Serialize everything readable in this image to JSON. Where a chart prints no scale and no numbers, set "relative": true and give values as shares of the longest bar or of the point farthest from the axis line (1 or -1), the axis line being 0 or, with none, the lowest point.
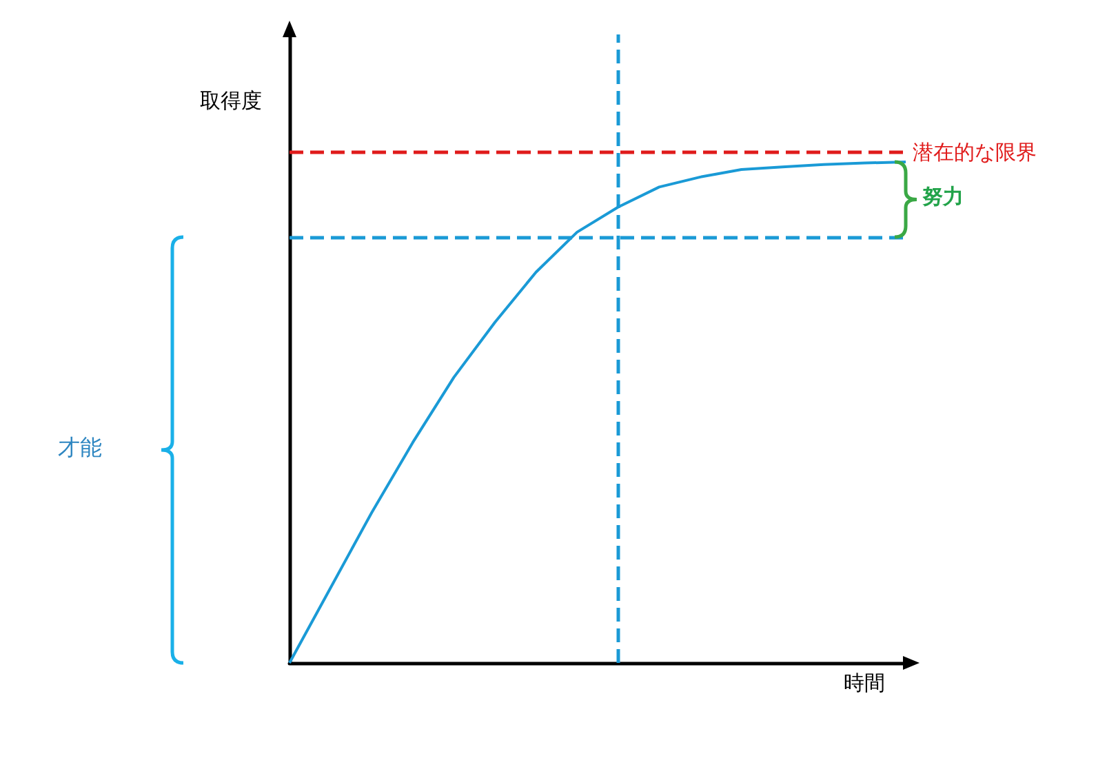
{
  "chart_data": {
    "type": "line",
    "relative": true,
    "xlabel": "時間",
    "ylabel": "取得度",
    "categories": [
      null,
      null,
      null,
      null,
      null,
      null,
      null,
      null,
      null,
      null,
      null,
      null,
      null,
      null,
      null,
      null
    ],
    "series": [
      {
        "color": "#1a9ad6",
        "values": [
          0,
          0.15,
          0.3,
          0.44,
          0.57,
          0.68,
          0.78,
          0.86,
          0.91,
          0.95,
          0.97,
          0.985,
          0.99,
          0.995,
          0.998,
          1
        ]
      }
    ],
    "ref_lines": [
      {
        "axis": "y",
        "value": 1.02,
        "label": "潜在的な限界",
        "color": "#e01b1b",
        "line_style": "dashed"
      },
      {
        "axis": "y",
        "value": 0.85,
        "label": null,
        "color": "#1a9ad6",
        "line_style": "dashed"
      }
    ],
    "annotations": [
      "才能",
      "努力"
    ],
    "marker": "none",
    "line_style": "solid",
    "grid": false
  }
}
